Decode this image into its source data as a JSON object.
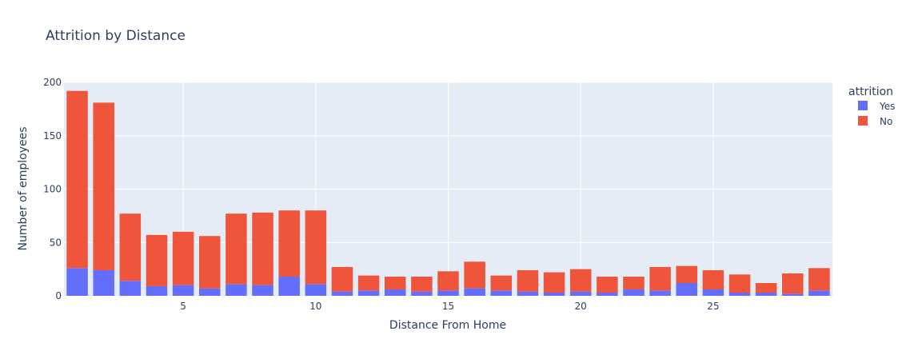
{
  "chart_data": {
    "type": "bar",
    "barmode": "stack",
    "title": "Attrition by Distance",
    "xlabel": "Distance From Home",
    "ylabel": "Number of employees",
    "x": [
      1,
      2,
      3,
      4,
      5,
      6,
      7,
      8,
      9,
      10,
      11,
      12,
      13,
      14,
      15,
      16,
      17,
      18,
      19,
      20,
      21,
      22,
      23,
      24,
      25,
      26,
      27,
      28,
      29
    ],
    "xticks": [
      5,
      10,
      15,
      20,
      25
    ],
    "xlim": [
      0.5,
      29.5
    ],
    "yticks": [
      0,
      50,
      100,
      150,
      200
    ],
    "ylim": [
      0,
      200
    ],
    "grid": true,
    "legend": {
      "title": "attrition",
      "placement": "top-right"
    },
    "series": [
      {
        "name": "Yes",
        "color": "#636efa",
        "values": [
          26,
          24,
          14,
          9,
          10,
          7,
          11,
          10,
          18,
          11,
          4,
          5,
          6,
          4,
          5,
          7,
          5,
          4,
          3,
          4,
          3,
          6,
          5,
          12,
          6,
          3,
          3,
          2,
          5
        ]
      },
      {
        "name": "No",
        "color": "#ef553b",
        "values": [
          166,
          157,
          63,
          48,
          50,
          49,
          66,
          68,
          62,
          69,
          23,
          14,
          12,
          14,
          18,
          25,
          14,
          20,
          19,
          21,
          15,
          12,
          22,
          16,
          18,
          17,
          9,
          19,
          21
        ]
      }
    ]
  }
}
